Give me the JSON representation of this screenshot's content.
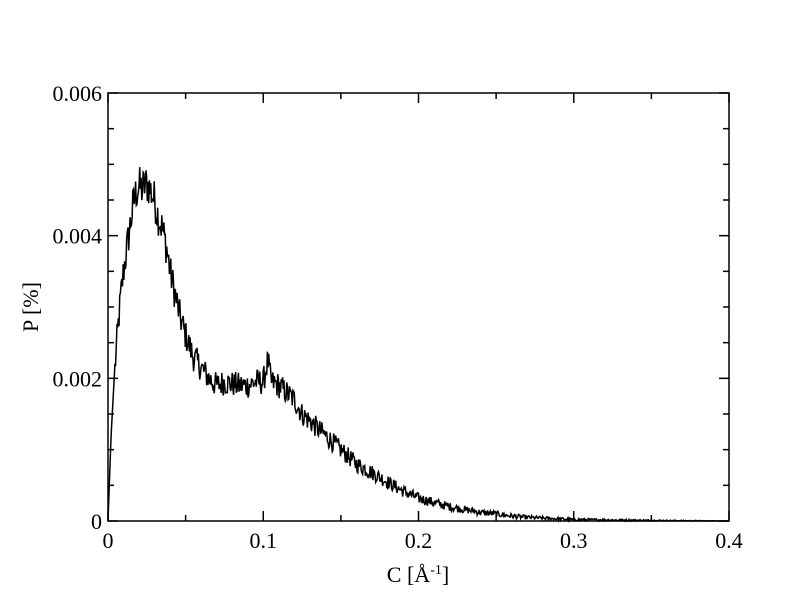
{
  "chart_data": {
    "type": "line",
    "title": "",
    "xlabel_main": "C [Å",
    "xlabel_sup": "-1",
    "xlabel_close": "]",
    "ylabel": "P [%]",
    "xlim": [
      0,
      0.4
    ],
    "ylim": [
      0,
      0.006
    ],
    "x_ticks": [
      0,
      0.1,
      0.2,
      0.3,
      0.4
    ],
    "x_tick_labels": [
      "0",
      "0.1",
      "0.2",
      "0.3",
      "0.4"
    ],
    "y_ticks": [
      0,
      0.002,
      0.004,
      0.006
    ],
    "y_tick_labels": [
      "0",
      "0.002",
      "0.004",
      "0.006"
    ],
    "grid": false,
    "legend": "none",
    "line_color": "#000000",
    "series": [
      {
        "x": [
          0,
          0.002,
          0.004,
          0.006,
          0.008,
          0.01,
          0.012,
          0.014,
          0.016,
          0.018,
          0.02,
          0.022,
          0.024,
          0.026,
          0.028,
          0.03,
          0.032,
          0.035,
          0.038,
          0.04,
          0.043,
          0.046,
          0.05,
          0.055,
          0.06,
          0.065,
          0.07,
          0.075,
          0.08,
          0.085,
          0.09,
          0.095,
          0.1,
          0.103,
          0.105,
          0.11,
          0.115,
          0.12,
          0.125,
          0.13,
          0.14,
          0.15,
          0.16,
          0.17,
          0.18,
          0.19,
          0.2,
          0.21,
          0.22,
          0.23,
          0.24,
          0.25,
          0.26,
          0.27,
          0.28,
          0.29,
          0.3,
          0.32,
          0.34,
          0.36,
          0.38,
          0.4
        ],
        "values": [
          0.0,
          0.0012,
          0.002,
          0.0026,
          0.0031,
          0.0035,
          0.0038,
          0.0041,
          0.0044,
          0.0046,
          0.0047,
          0.00465,
          0.00472,
          0.0047,
          0.0046,
          0.0045,
          0.0043,
          0.0041,
          0.0038,
          0.0035,
          0.0032,
          0.0029,
          0.0026,
          0.0023,
          0.00215,
          0.002,
          0.0019,
          0.00195,
          0.00192,
          0.0019,
          0.0019,
          0.00195,
          0.00195,
          0.00225,
          0.00195,
          0.0019,
          0.0018,
          0.0017,
          0.0015,
          0.0014,
          0.0012,
          0.001,
          0.0008,
          0.00068,
          0.00055,
          0.00042,
          0.00032,
          0.00026,
          0.0002,
          0.00016,
          0.00012,
          0.0001,
          7e-05,
          5e-05,
          4e-05,
          3e-05,
          2e-05,
          1.5e-05,
          1e-05,
          5e-06,
          2e-06,
          0.0
        ]
      }
    ]
  }
}
